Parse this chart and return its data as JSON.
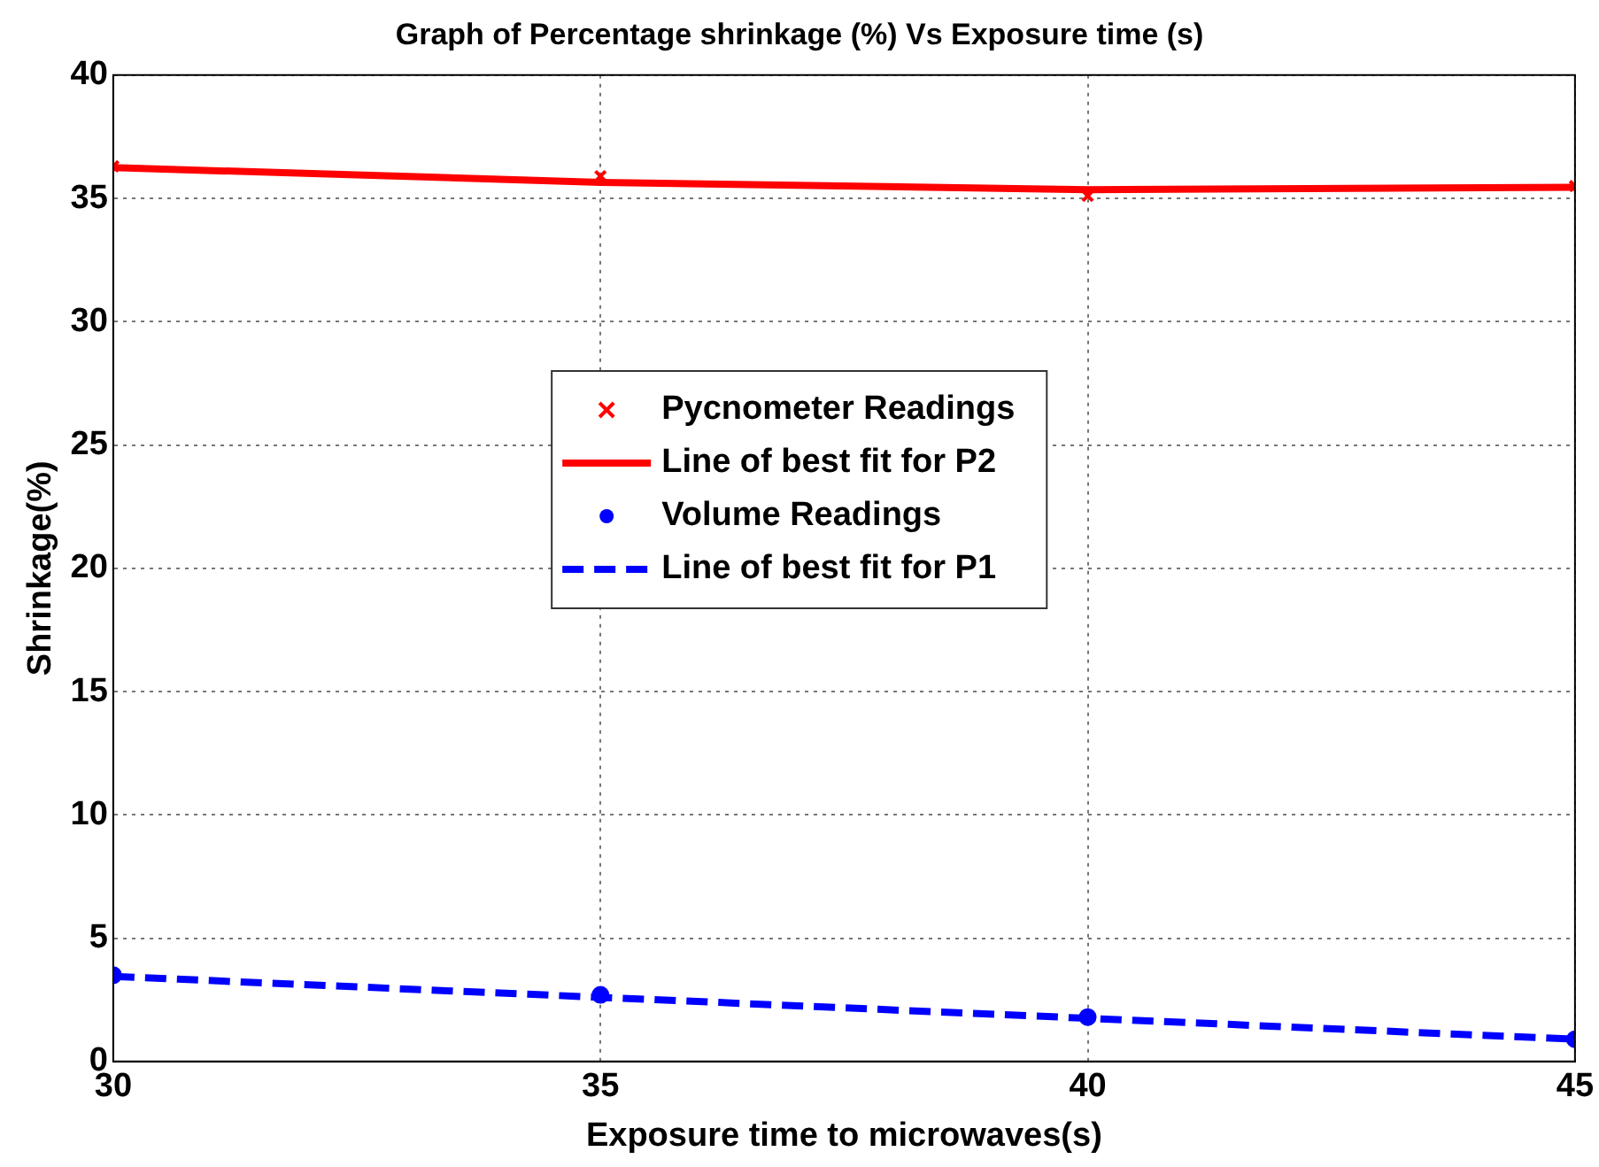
{
  "chart_data": {
    "type": "line",
    "title": "Graph of Percentage shrinkage (%) Vs Exposure time (s)",
    "xlabel": "Exposure time to microwaves(s)",
    "ylabel": "Shrinkage(%)",
    "x": [
      30,
      35,
      40,
      45
    ],
    "series": [
      {
        "name": "Pycnometer Readings",
        "type": "scatter",
        "color": "#ff0000",
        "marker": "cross",
        "values": [
          36.3,
          35.9,
          35.1,
          35.5
        ]
      },
      {
        "name": "Line of best fit for P2",
        "color": "#ff0000",
        "line_style": "solid",
        "x": [
          30,
          35,
          40,
          45
        ],
        "values": [
          36.25,
          35.65,
          35.35,
          35.45
        ]
      },
      {
        "name": "Volume Readings",
        "type": "scatter",
        "color": "#0000ff",
        "marker": "circle",
        "values": [
          3.5,
          2.7,
          1.8,
          0.9
        ]
      },
      {
        "name": "Line of best fit for P1",
        "color": "#0000ff",
        "line_style": "dashed",
        "x": [
          30,
          35,
          40,
          45
        ],
        "values": [
          3.45,
          2.6,
          1.75,
          0.9
        ]
      }
    ],
    "xlim": [
      30,
      45
    ],
    "xticks": [
      30,
      35,
      40,
      45
    ],
    "ylim": [
      0,
      40
    ],
    "yticks": [
      0,
      5,
      10,
      15,
      20,
      25,
      30,
      35,
      40
    ],
    "grid": true,
    "legend": "center"
  }
}
